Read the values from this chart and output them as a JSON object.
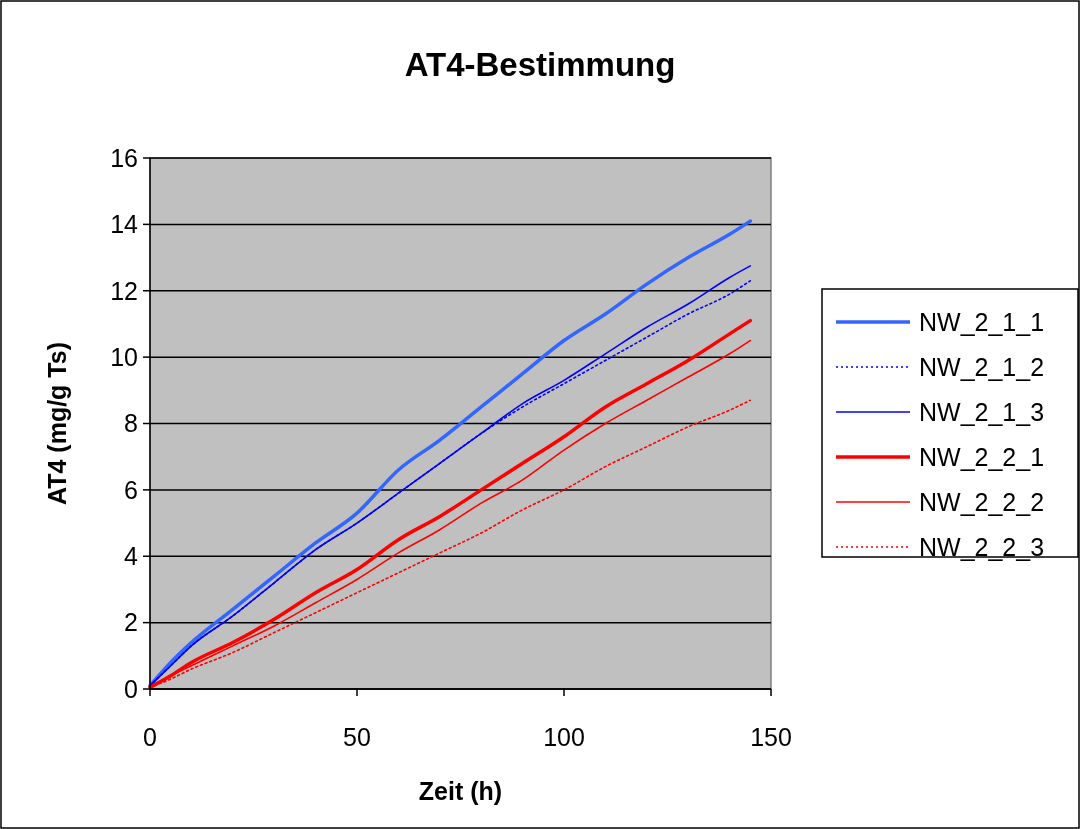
{
  "chart_data": {
    "type": "line",
    "title": "AT4-Bestimmung",
    "xlabel": "Zeit (h)",
    "ylabel": "AT4 (mg/g Ts)",
    "x": [
      0,
      5,
      10,
      20,
      30,
      40,
      50,
      60,
      70,
      80,
      90,
      100,
      110,
      120,
      130,
      140,
      145
    ],
    "series": [
      {
        "name": "NW_2_1_1",
        "color": "#3366ff",
        "line_style": "solid",
        "values": [
          0.1,
          0.8,
          1.4,
          2.4,
          3.4,
          4.4,
          5.3,
          6.6,
          7.5,
          8.5,
          9.5,
          10.5,
          11.3,
          12.2,
          13.0,
          13.7,
          14.1
        ]
      },
      {
        "name": "NW_2_1_2",
        "color": "#0000ff",
        "line_style": "dotted",
        "values": [
          0.1,
          0.7,
          1.3,
          2.2,
          3.2,
          4.2,
          5.0,
          5.9,
          6.8,
          7.7,
          8.5,
          9.2,
          9.9,
          10.6,
          11.3,
          11.9,
          12.3
        ]
      },
      {
        "name": "NW_2_1_3",
        "color": "#0000ff",
        "line_style": "solid",
        "values": [
          0.1,
          0.7,
          1.3,
          2.2,
          3.2,
          4.2,
          5.0,
          5.9,
          6.8,
          7.7,
          8.6,
          9.3,
          10.1,
          10.9,
          11.6,
          12.4,
          12.75
        ]
      },
      {
        "name": "NW_2_2_1",
        "color": "#ff0000",
        "line_style": "solid",
        "values": [
          0.05,
          0.4,
          0.8,
          1.4,
          2.1,
          2.9,
          3.6,
          4.5,
          5.2,
          6.0,
          6.8,
          7.6,
          8.5,
          9.2,
          9.9,
          10.7,
          11.1
        ]
      },
      {
        "name": "NW_2_2_2",
        "color": "#ff0000",
        "line_style": "solid",
        "values": [
          0.05,
          0.4,
          0.7,
          1.3,
          1.9,
          2.6,
          3.3,
          4.1,
          4.8,
          5.6,
          6.3,
          7.2,
          8.0,
          8.7,
          9.4,
          10.1,
          10.5
        ]
      },
      {
        "name": "NW_2_2_3",
        "color": "#ff0000",
        "line_style": "dotted",
        "values": [
          0.05,
          0.3,
          0.6,
          1.1,
          1.7,
          2.3,
          2.9,
          3.5,
          4.1,
          4.7,
          5.4,
          6.0,
          6.7,
          7.3,
          7.9,
          8.4,
          8.7
        ]
      }
    ],
    "xlim": [
      0,
      150
    ],
    "xticks": [
      0,
      50,
      100,
      150
    ],
    "ylim": [
      0,
      16
    ],
    "yticks": [
      0,
      2,
      4,
      6,
      8,
      10,
      12,
      14,
      16
    ],
    "grid": "y",
    "legend": "right"
  }
}
